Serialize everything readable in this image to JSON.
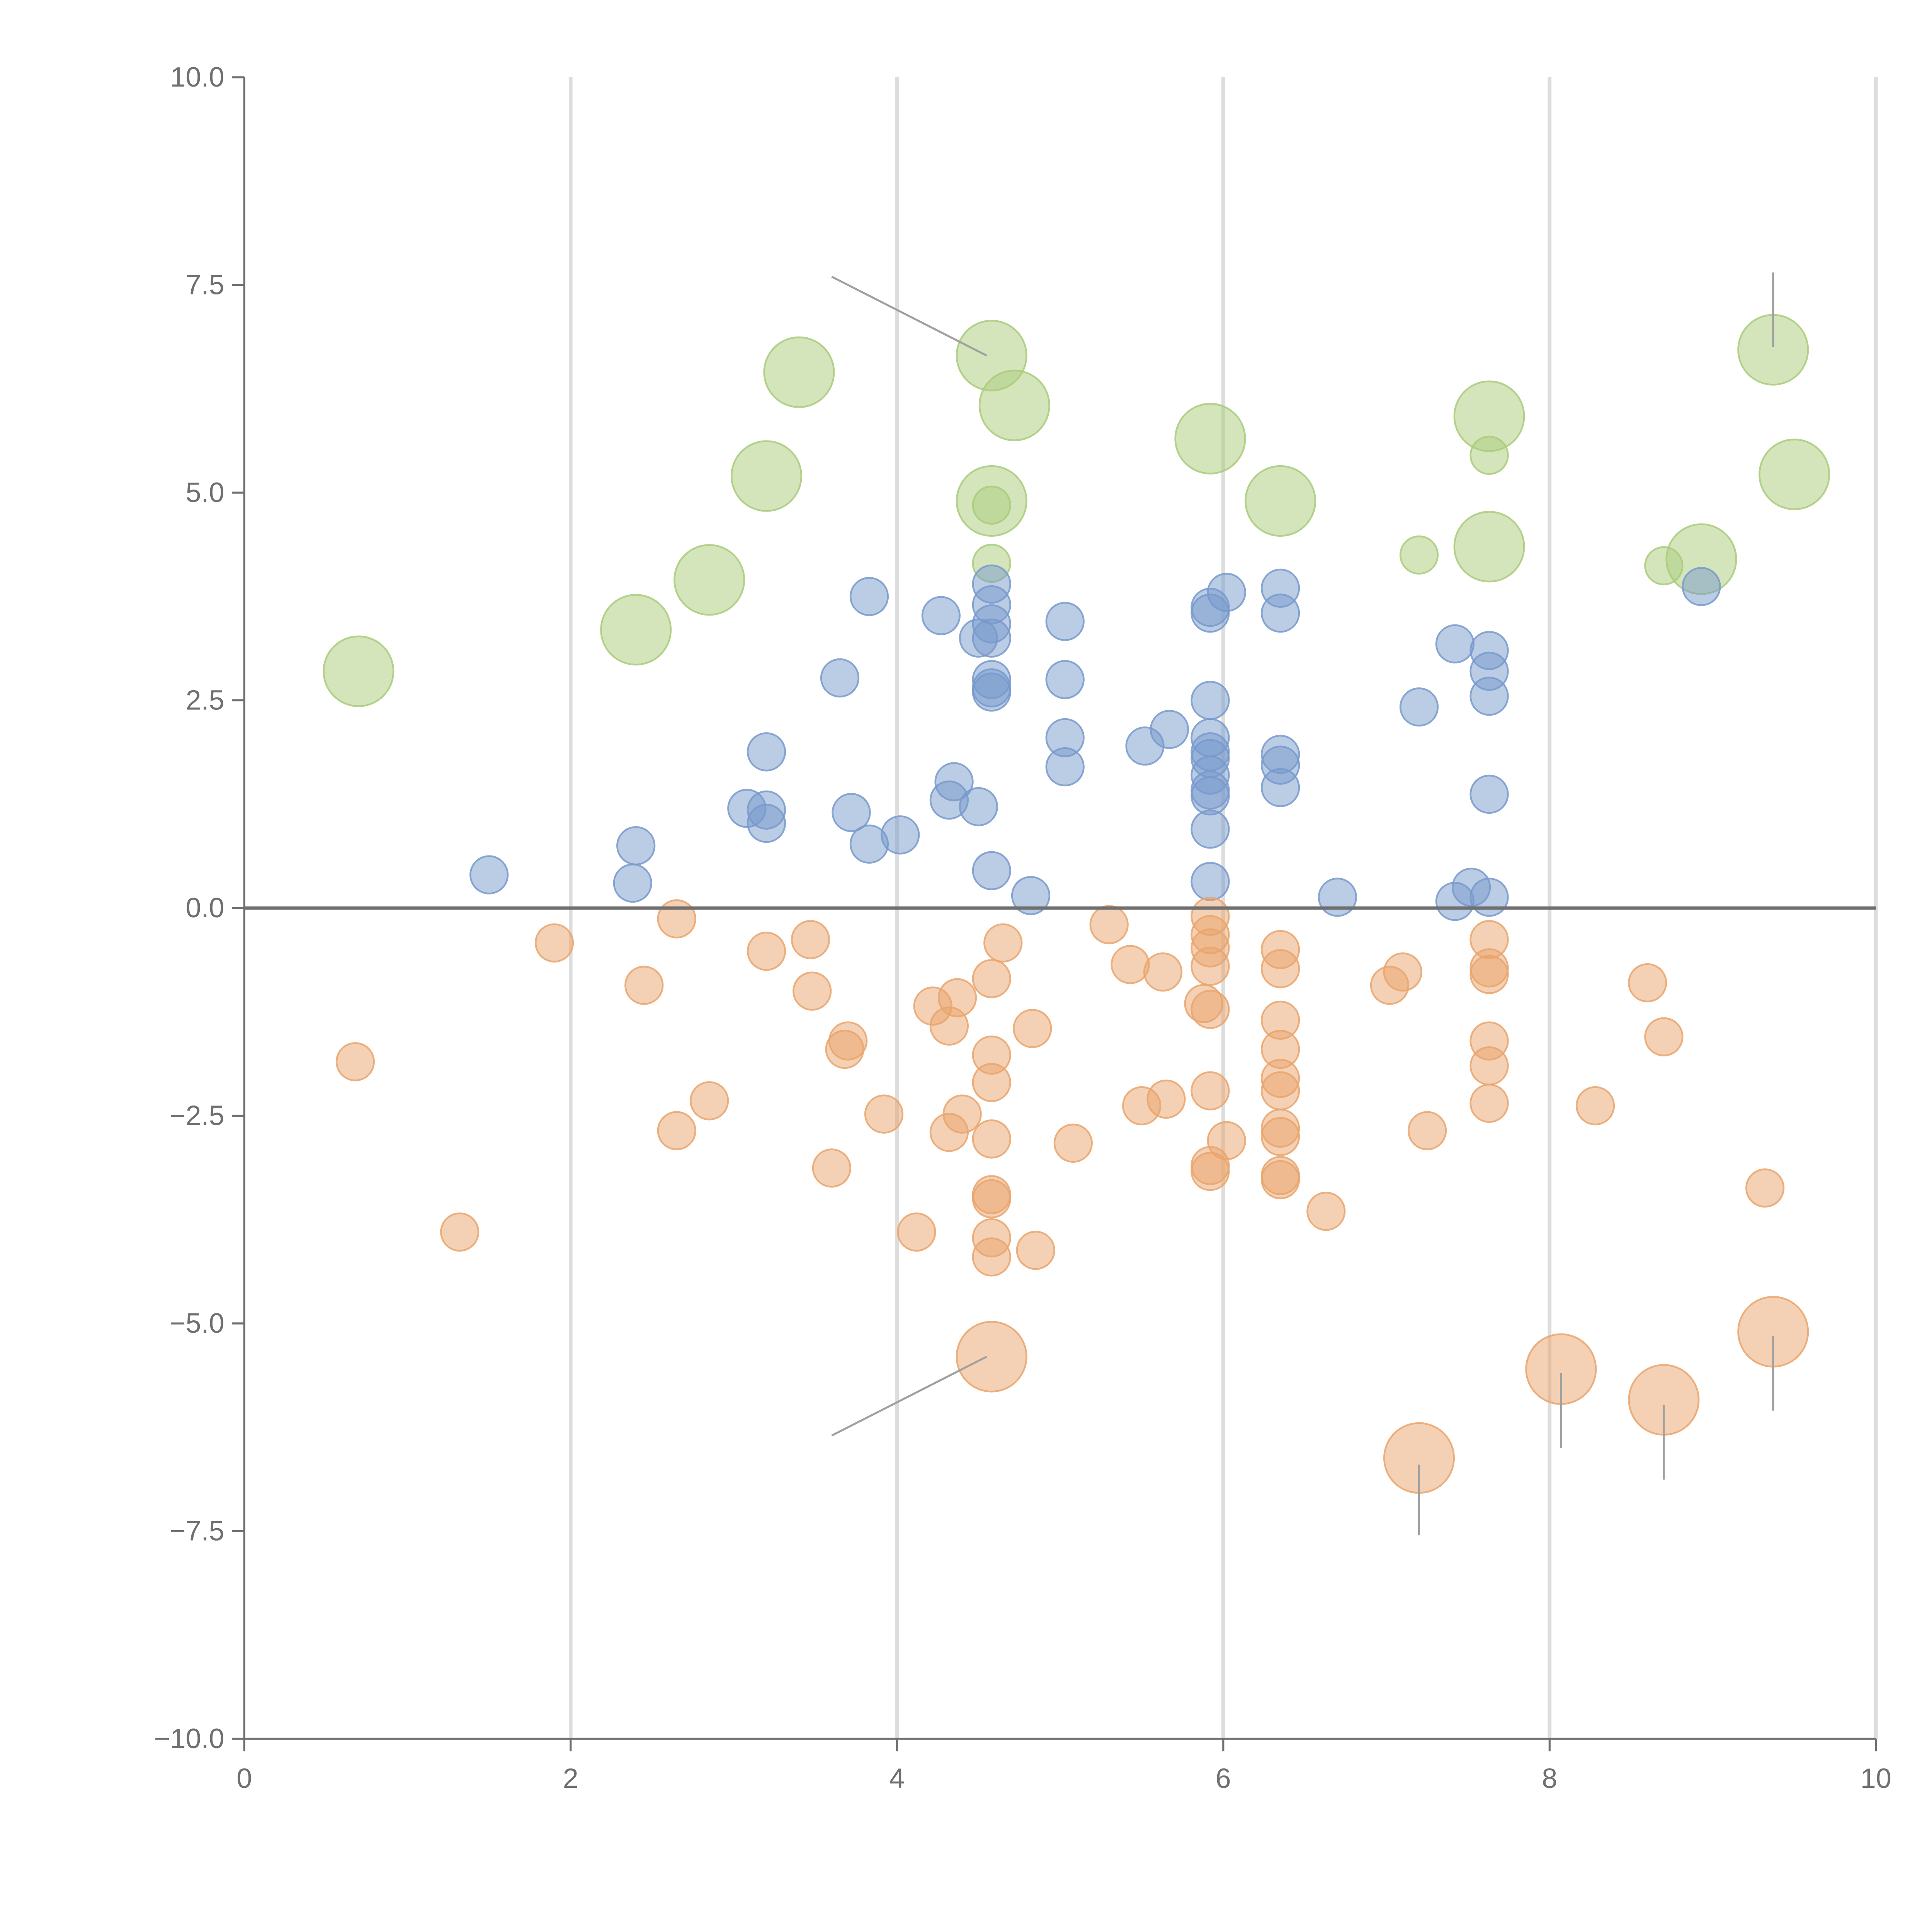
{
  "chart_data": {
    "type": "scatter",
    "title": "",
    "xlabel": "",
    "ylabel": "",
    "xlim": [
      0,
      10
    ],
    "ylim": [
      -10,
      10
    ],
    "x_ticks": [
      0,
      2,
      4,
      6,
      8,
      10
    ],
    "x_tick_labels": [
      "0",
      "2",
      "4",
      "6",
      "8",
      "10"
    ],
    "y_ticks": [
      10,
      7.5,
      5,
      2.5,
      0,
      -2.5,
      -5,
      -7.5,
      -10
    ],
    "y_tick_labels": [
      "10.0",
      "7.5",
      "5.0",
      "2.5",
      "0.0",
      "−2.5",
      "−5.0",
      "−7.5",
      "−10.0"
    ],
    "vertical_grid": true,
    "zero_line": true,
    "colors": {
      "green": "#a9cb7a",
      "blue": "#7799cc",
      "orange": "#e9a46c",
      "axis": "#6f6f6f",
      "grid": "#dddddd",
      "leader": "#a0a0a0"
    },
    "series": [
      {
        "name": "green",
        "color": "#a9cb7a",
        "points": [
          {
            "x": 0.7,
            "y": 2.85,
            "s": "L"
          },
          {
            "x": 2.4,
            "y": 3.35,
            "s": "L"
          },
          {
            "x": 2.85,
            "y": 3.95,
            "s": "L"
          },
          {
            "x": 3.2,
            "y": 5.2,
            "s": "L"
          },
          {
            "x": 3.4,
            "y": 6.45,
            "s": "L"
          },
          {
            "x": 4.58,
            "y": 6.65,
            "s": "L"
          },
          {
            "x": 4.72,
            "y": 6.05,
            "s": "L"
          },
          {
            "x": 4.58,
            "y": 4.9,
            "s": "L"
          },
          {
            "x": 4.58,
            "y": 4.85,
            "s": "S"
          },
          {
            "x": 4.58,
            "y": 4.15,
            "s": "S"
          },
          {
            "x": 5.92,
            "y": 5.65,
            "s": "L"
          },
          {
            "x": 6.35,
            "y": 4.9,
            "s": "L"
          },
          {
            "x": 7.2,
            "y": 4.25,
            "s": "S"
          },
          {
            "x": 7.63,
            "y": 5.92,
            "s": "L"
          },
          {
            "x": 7.63,
            "y": 5.45,
            "s": "S"
          },
          {
            "x": 7.63,
            "y": 4.35,
            "s": "L"
          },
          {
            "x": 8.7,
            "y": 4.12,
            "s": "S"
          },
          {
            "x": 8.93,
            "y": 4.2,
            "s": "L"
          },
          {
            "x": 9.37,
            "y": 6.72,
            "s": "L"
          },
          {
            "x": 9.5,
            "y": 5.22,
            "s": "L"
          }
        ]
      },
      {
        "name": "blue",
        "color": "#7799cc",
        "points": [
          {
            "x": 1.5,
            "y": 0.4
          },
          {
            "x": 2.38,
            "y": 0.3
          },
          {
            "x": 2.4,
            "y": 0.75
          },
          {
            "x": 3.08,
            "y": 1.2
          },
          {
            "x": 3.2,
            "y": 1.88
          },
          {
            "x": 3.2,
            "y": 1.18
          },
          {
            "x": 3.2,
            "y": 1.02
          },
          {
            "x": 3.65,
            "y": 2.77
          },
          {
            "x": 3.72,
            "y": 1.15
          },
          {
            "x": 3.83,
            "y": 3.75
          },
          {
            "x": 3.83,
            "y": 0.77
          },
          {
            "x": 4.02,
            "y": 0.88
          },
          {
            "x": 4.27,
            "y": 3.52
          },
          {
            "x": 4.32,
            "y": 1.3
          },
          {
            "x": 4.35,
            "y": 1.52
          },
          {
            "x": 4.5,
            "y": 3.25
          },
          {
            "x": 4.5,
            "y": 1.22
          },
          {
            "x": 4.58,
            "y": 3.9
          },
          {
            "x": 4.58,
            "y": 3.65
          },
          {
            "x": 4.58,
            "y": 3.42
          },
          {
            "x": 4.58,
            "y": 3.25
          },
          {
            "x": 4.58,
            "y": 2.75
          },
          {
            "x": 4.58,
            "y": 2.65
          },
          {
            "x": 4.58,
            "y": 2.6
          },
          {
            "x": 4.58,
            "y": 0.45
          },
          {
            "x": 4.82,
            "y": 0.15
          },
          {
            "x": 5.03,
            "y": 3.45
          },
          {
            "x": 5.03,
            "y": 2.75
          },
          {
            "x": 5.03,
            "y": 2.05
          },
          {
            "x": 5.03,
            "y": 1.7
          },
          {
            "x": 5.52,
            "y": 1.95
          },
          {
            "x": 5.67,
            "y": 2.15
          },
          {
            "x": 5.92,
            "y": 3.62
          },
          {
            "x": 5.92,
            "y": 3.55
          },
          {
            "x": 5.92,
            "y": 2.5
          },
          {
            "x": 5.92,
            "y": 2.05
          },
          {
            "x": 5.92,
            "y": 1.88
          },
          {
            "x": 5.92,
            "y": 1.8
          },
          {
            "x": 5.92,
            "y": 1.6
          },
          {
            "x": 5.92,
            "y": 1.42
          },
          {
            "x": 5.92,
            "y": 1.35
          },
          {
            "x": 5.92,
            "y": 0.95
          },
          {
            "x": 5.92,
            "y": 0.32
          },
          {
            "x": 6.02,
            "y": 3.8
          },
          {
            "x": 6.35,
            "y": 3.85
          },
          {
            "x": 6.35,
            "y": 3.55
          },
          {
            "x": 6.35,
            "y": 1.85
          },
          {
            "x": 6.35,
            "y": 1.72
          },
          {
            "x": 6.35,
            "y": 1.45
          },
          {
            "x": 6.7,
            "y": 0.13
          },
          {
            "x": 7.2,
            "y": 2.42
          },
          {
            "x": 7.42,
            "y": 3.18
          },
          {
            "x": 7.42,
            "y": 0.08
          },
          {
            "x": 7.52,
            "y": 0.25
          },
          {
            "x": 7.63,
            "y": 3.1
          },
          {
            "x": 7.63,
            "y": 2.85
          },
          {
            "x": 7.63,
            "y": 2.55
          },
          {
            "x": 7.63,
            "y": 1.37
          },
          {
            "x": 7.63,
            "y": 0.13
          },
          {
            "x": 8.93,
            "y": 3.87
          }
        ]
      },
      {
        "name": "orange",
        "color": "#e9a46c",
        "points": [
          {
            "x": 0.68,
            "y": -1.85,
            "s": "S"
          },
          {
            "x": 1.32,
            "y": -3.9,
            "s": "S"
          },
          {
            "x": 1.9,
            "y": -0.42,
            "s": "S"
          },
          {
            "x": 2.45,
            "y": -0.93,
            "s": "S"
          },
          {
            "x": 2.65,
            "y": -0.13,
            "s": "S"
          },
          {
            "x": 2.65,
            "y": -2.68,
            "s": "S"
          },
          {
            "x": 2.85,
            "y": -2.32,
            "s": "S"
          },
          {
            "x": 3.2,
            "y": -0.52,
            "s": "S"
          },
          {
            "x": 3.47,
            "y": -0.38,
            "s": "S"
          },
          {
            "x": 3.48,
            "y": -1.0,
            "s": "S"
          },
          {
            "x": 3.6,
            "y": -3.13,
            "s": "S"
          },
          {
            "x": 3.68,
            "y": -1.7,
            "s": "S"
          },
          {
            "x": 3.7,
            "y": -1.6,
            "s": "S"
          },
          {
            "x": 3.92,
            "y": -2.48,
            "s": "S"
          },
          {
            "x": 4.12,
            "y": -3.9,
            "s": "S"
          },
          {
            "x": 4.22,
            "y": -1.18,
            "s": "S"
          },
          {
            "x": 4.32,
            "y": -1.42,
            "s": "S"
          },
          {
            "x": 4.32,
            "y": -2.7,
            "s": "S"
          },
          {
            "x": 4.37,
            "y": -1.08,
            "s": "S"
          },
          {
            "x": 4.4,
            "y": -2.48,
            "s": "S"
          },
          {
            "x": 4.58,
            "y": -0.85,
            "s": "S"
          },
          {
            "x": 4.58,
            "y": -1.77,
            "s": "S"
          },
          {
            "x": 4.58,
            "y": -2.1,
            "s": "S"
          },
          {
            "x": 4.58,
            "y": -2.78,
            "s": "S"
          },
          {
            "x": 4.58,
            "y": -3.45,
            "s": "S"
          },
          {
            "x": 4.58,
            "y": -3.5,
            "s": "S"
          },
          {
            "x": 4.58,
            "y": -3.97,
            "s": "S"
          },
          {
            "x": 4.58,
            "y": -4.2,
            "s": "S"
          },
          {
            "x": 4.65,
            "y": -0.42,
            "s": "S"
          },
          {
            "x": 4.83,
            "y": -1.45,
            "s": "S"
          },
          {
            "x": 4.85,
            "y": -4.12,
            "s": "S"
          },
          {
            "x": 5.08,
            "y": -2.83,
            "s": "S"
          },
          {
            "x": 5.3,
            "y": -0.2,
            "s": "S"
          },
          {
            "x": 5.43,
            "y": -0.68,
            "s": "S"
          },
          {
            "x": 5.5,
            "y": -2.38,
            "s": "S"
          },
          {
            "x": 5.63,
            "y": -0.77,
            "s": "S"
          },
          {
            "x": 5.65,
            "y": -2.3,
            "s": "S"
          },
          {
            "x": 5.88,
            "y": -1.15,
            "s": "S"
          },
          {
            "x": 5.92,
            "y": -0.1,
            "s": "S"
          },
          {
            "x": 5.92,
            "y": -0.32,
            "s": "S"
          },
          {
            "x": 5.92,
            "y": -0.48,
            "s": "S"
          },
          {
            "x": 5.92,
            "y": -0.7,
            "s": "S"
          },
          {
            "x": 5.92,
            "y": -1.22,
            "s": "S"
          },
          {
            "x": 5.92,
            "y": -2.2,
            "s": "S"
          },
          {
            "x": 5.92,
            "y": -3.1,
            "s": "S"
          },
          {
            "x": 5.92,
            "y": -3.17,
            "s": "S"
          },
          {
            "x": 6.02,
            "y": -2.8,
            "s": "S"
          },
          {
            "x": 6.35,
            "y": -0.5,
            "s": "S"
          },
          {
            "x": 6.35,
            "y": -0.73,
            "s": "S"
          },
          {
            "x": 6.35,
            "y": -1.35,
            "s": "S"
          },
          {
            "x": 6.35,
            "y": -1.7,
            "s": "S"
          },
          {
            "x": 6.35,
            "y": -2.05,
            "s": "S"
          },
          {
            "x": 6.35,
            "y": -2.2,
            "s": "S"
          },
          {
            "x": 6.35,
            "y": -2.65,
            "s": "S"
          },
          {
            "x": 6.35,
            "y": -2.75,
            "s": "S"
          },
          {
            "x": 6.35,
            "y": -3.22,
            "s": "S"
          },
          {
            "x": 6.35,
            "y": -3.27,
            "s": "S"
          },
          {
            "x": 6.63,
            "y": -3.65,
            "s": "S"
          },
          {
            "x": 7.02,
            "y": -0.93,
            "s": "S"
          },
          {
            "x": 7.1,
            "y": -0.77,
            "s": "S"
          },
          {
            "x": 7.25,
            "y": -2.68,
            "s": "S"
          },
          {
            "x": 7.63,
            "y": -0.38,
            "s": "S"
          },
          {
            "x": 7.63,
            "y": -0.72,
            "s": "S"
          },
          {
            "x": 7.63,
            "y": -0.8,
            "s": "S"
          },
          {
            "x": 7.63,
            "y": -1.6,
            "s": "S"
          },
          {
            "x": 7.63,
            "y": -1.9,
            "s": "S"
          },
          {
            "x": 7.63,
            "y": -2.35,
            "s": "S"
          },
          {
            "x": 8.28,
            "y": -2.38,
            "s": "S"
          },
          {
            "x": 8.6,
            "y": -0.9,
            "s": "S"
          },
          {
            "x": 8.7,
            "y": -1.55,
            "s": "S"
          },
          {
            "x": 9.32,
            "y": -3.37,
            "s": "S"
          },
          {
            "x": 4.58,
            "y": -5.4,
            "s": "L"
          },
          {
            "x": 7.2,
            "y": -6.62,
            "s": "L"
          },
          {
            "x": 8.07,
            "y": -5.55,
            "s": "L"
          },
          {
            "x": 8.7,
            "y": -5.92,
            "s": "L"
          },
          {
            "x": 9.37,
            "y": -5.1,
            "s": "L"
          }
        ]
      }
    ],
    "leader_lines": [
      {
        "from": [
          3.6,
          7.6
        ],
        "to": [
          4.55,
          6.65
        ]
      },
      {
        "from": [
          3.6,
          -6.35
        ],
        "to": [
          4.55,
          -5.4
        ]
      },
      {
        "from": [
          9.37,
          7.65
        ],
        "to": [
          9.37,
          6.75
        ]
      },
      {
        "from": [
          7.2,
          -7.55
        ],
        "to": [
          7.2,
          -6.7
        ]
      },
      {
        "from": [
          8.07,
          -6.5
        ],
        "to": [
          8.07,
          -5.6
        ]
      },
      {
        "from": [
          8.7,
          -6.88
        ],
        "to": [
          8.7,
          -5.98
        ]
      },
      {
        "from": [
          9.37,
          -6.05
        ],
        "to": [
          9.37,
          -5.15
        ]
      }
    ]
  }
}
